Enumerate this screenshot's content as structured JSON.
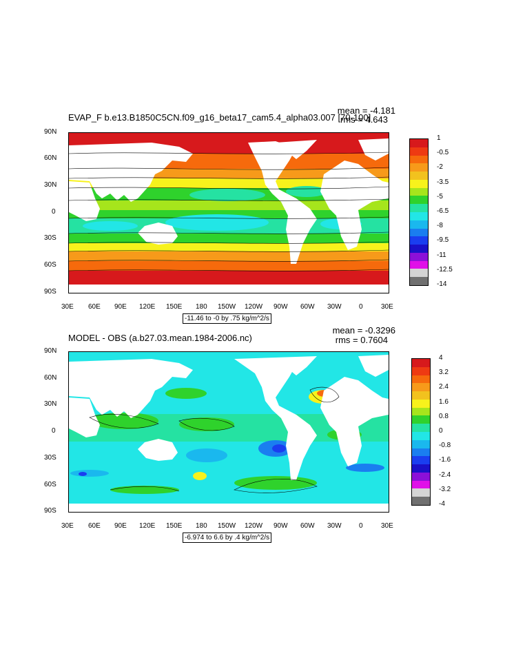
{
  "panels": [
    {
      "title": "EVAP_F b.e13.B1850C5CN.f09_g16_beta17_cam5.4_alpha03.007 [70-100]",
      "mean_label": "mean = -4.181",
      "rms_label": "rms = 4.643",
      "info_label": "-11.46 to -0 by .75 kg/m^2/s",
      "lat_labels": [
        "90N",
        "60N",
        "30N",
        "0",
        "30S",
        "60S",
        "90S"
      ],
      "lon_labels": [
        "30E",
        "60E",
        "90E",
        "120E",
        "150E",
        "180",
        "150W",
        "120W",
        "90W",
        "60W",
        "30W",
        "0",
        "30E"
      ],
      "colorbar": {
        "labels": [
          "1",
          "-0.5",
          "-2",
          "-3.5",
          "-5",
          "-6.5",
          "-8",
          "-9.5",
          "-11",
          "-12.5",
          "-14"
        ],
        "colors": [
          "#d7191c",
          "#ee3a12",
          "#f66a0c",
          "#f79a1a",
          "#f2c21e",
          "#f7f21c",
          "#a6e51c",
          "#2fd22c",
          "#25e2a2",
          "#22e6e6",
          "#1ab8ee",
          "#1a7ef0",
          "#1a3ef0",
          "#1a10c8",
          "#8c10d8",
          "#e010e8",
          "#d4d4d4",
          "#707070"
        ]
      }
    },
    {
      "title": "MODEL - OBS (a.b27.03.mean.1984-2006.nc)",
      "mean_label": "mean = -0.3296",
      "rms_label": "rms = 0.7604",
      "info_label": "-6.974 to 6.6 by .4 kg/m^2/s",
      "lat_labels": [
        "90N",
        "60N",
        "30N",
        "0",
        "30S",
        "60S",
        "90S"
      ],
      "lon_labels": [
        "30E",
        "60E",
        "90E",
        "120E",
        "150E",
        "180",
        "150W",
        "120W",
        "90W",
        "60W",
        "30W",
        "0",
        "30E"
      ],
      "colorbar": {
        "labels": [
          "4",
          "3.2",
          "2.4",
          "1.6",
          "0.8",
          "0",
          "-0.8",
          "-1.6",
          "-2.4",
          "-3.2",
          "-4"
        ],
        "colors": [
          "#d7191c",
          "#ee3a12",
          "#f66a0c",
          "#f79a1a",
          "#f2c21e",
          "#f7f21c",
          "#a6e51c",
          "#2fd22c",
          "#25e2a2",
          "#22e6e6",
          "#1ab8ee",
          "#1a7ef0",
          "#1a3ef0",
          "#1a10c8",
          "#8c10d8",
          "#e010e8",
          "#d4d4d4",
          "#707070"
        ]
      }
    }
  ]
}
